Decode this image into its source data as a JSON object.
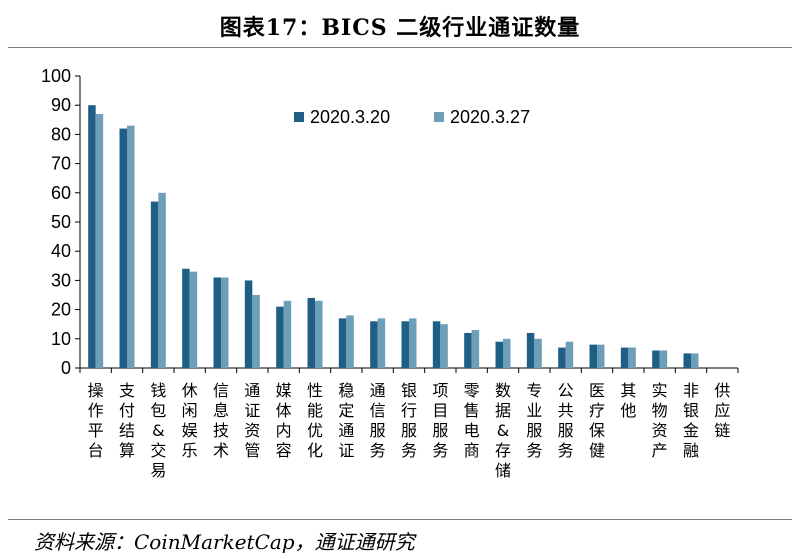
{
  "title": "图表17：BICS 二级行业通证数量",
  "source": "资料来源：CoinMarketCap，通证通研究",
  "chart_data": {
    "type": "bar",
    "title": "图表17：BICS 二级行业通证数量",
    "xlabel": "",
    "ylabel": "",
    "ylim": [
      0,
      100
    ],
    "yticks": [
      0,
      10,
      20,
      30,
      40,
      50,
      60,
      70,
      80,
      90,
      100
    ],
    "grid": false,
    "legend": "top-center",
    "categories": [
      "操作平台",
      "支付结算",
      "钱包&交易",
      "休闲娱乐",
      "信息技术",
      "通证资管",
      "媒体内容",
      "性能优化",
      "稳定通证",
      "通信服务",
      "银行服务",
      "项目服务",
      "零售电商",
      "数据&存储",
      "专业服务",
      "公共服务",
      "医疗保健",
      "其他",
      "实物资产",
      "非银金融",
      "供应链"
    ],
    "series": [
      {
        "name": "2020.3.20",
        "color": "#1f5f85",
        "values": [
          90,
          82,
          57,
          34,
          31,
          30,
          21,
          24,
          17,
          16,
          16,
          16,
          12,
          9,
          12,
          7,
          8,
          7,
          6,
          5,
          0
        ]
      },
      {
        "name": "2020.3.27",
        "color": "#6d9fb8",
        "values": [
          87,
          83,
          60,
          33,
          31,
          25,
          23,
          23,
          18,
          17,
          17,
          15,
          13,
          10,
          10,
          9,
          8,
          7,
          6,
          5,
          0
        ]
      }
    ]
  }
}
